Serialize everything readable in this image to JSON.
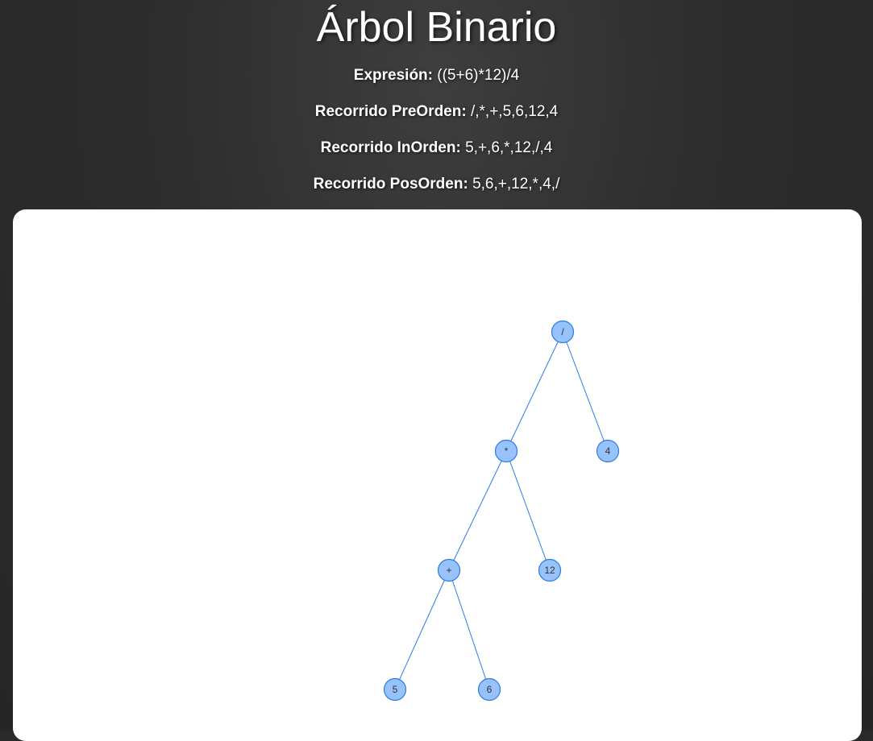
{
  "header": {
    "title": "Árbol Binario",
    "expression_label": "Expresión:",
    "expression_value": "((5+6)*12)/4",
    "preorder_label": "Recorrido PreOrden:",
    "preorder_value": "/,*,+,5,6,12,4",
    "inorder_label": "Recorrido InOrden:",
    "inorder_value": "5,+,6,*,12,/,4",
    "postorder_label": "Recorrido PosOrden:",
    "postorder_value": "5,6,+,12,*,4,/"
  },
  "tree": {
    "node_fill": "#97c2fc",
    "node_stroke": "#2b7ce9",
    "edge_color": "#2b7ce9",
    "nodes": [
      {
        "id": "root",
        "label": "/"
      },
      {
        "id": "mul",
        "label": "*"
      },
      {
        "id": "four",
        "label": "4"
      },
      {
        "id": "plus",
        "label": "+"
      },
      {
        "id": "twelve",
        "label": "12"
      },
      {
        "id": "five",
        "label": "5"
      },
      {
        "id": "six",
        "label": "6"
      }
    ],
    "edges": [
      {
        "from": "root",
        "to": "mul"
      },
      {
        "from": "root",
        "to": "four"
      },
      {
        "from": "mul",
        "to": "plus"
      },
      {
        "from": "mul",
        "to": "twelve"
      },
      {
        "from": "plus",
        "to": "five"
      },
      {
        "from": "plus",
        "to": "six"
      }
    ]
  }
}
